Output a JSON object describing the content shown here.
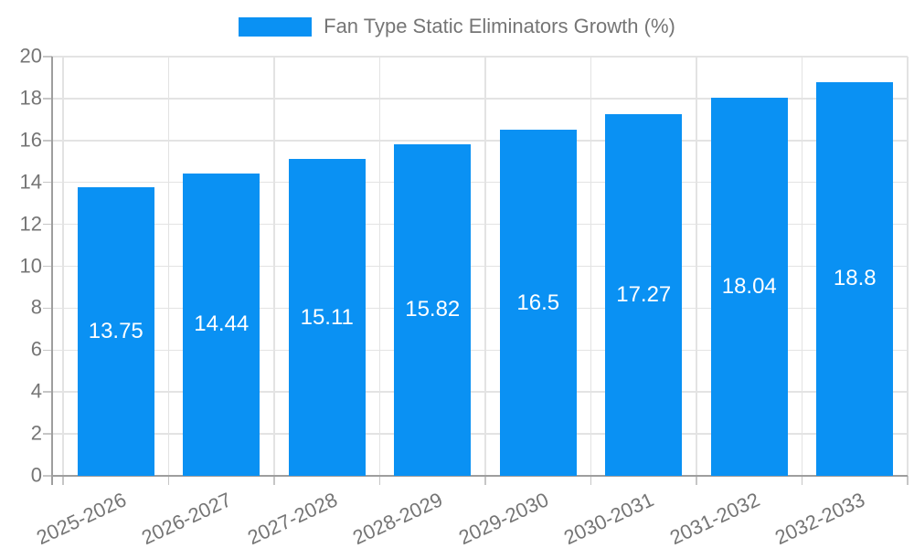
{
  "legend": {
    "label": "Fan Type Static Eliminators Growth (%)"
  },
  "chart_data": {
    "type": "bar",
    "title": "Fan Type Static Eliminators Growth (%)",
    "categories": [
      "2025-2026",
      "2026-2027",
      "2027-2028",
      "2028-2029",
      "2029-2030",
      "2030-2031",
      "2031-2032",
      "2032-2033"
    ],
    "series": [
      {
        "name": "Fan Type Static Eliminators Growth (%)",
        "values": [
          13.75,
          14.44,
          15.11,
          15.82,
          16.5,
          17.27,
          18.04,
          18.8
        ]
      }
    ],
    "value_labels": [
      "13.75",
      "14.44",
      "15.11",
      "15.82",
      "16.5",
      "17.27",
      "18.04",
      "18.8"
    ],
    "xlabel": "",
    "ylabel": "",
    "ylim": [
      0,
      20
    ],
    "yticks": [
      0,
      2,
      4,
      6,
      8,
      10,
      12,
      14,
      16,
      18,
      20
    ],
    "grid": true,
    "legend_position": "top",
    "colors": {
      "bar": "#0a91f3",
      "value_text": "#ffffff",
      "grid": "#e3e3e3",
      "axis_line": "#9e9e9e",
      "tick": "#c6c6c6",
      "axis_text": "#757575",
      "legend_text": "#757575",
      "background": "#ffffff"
    }
  }
}
